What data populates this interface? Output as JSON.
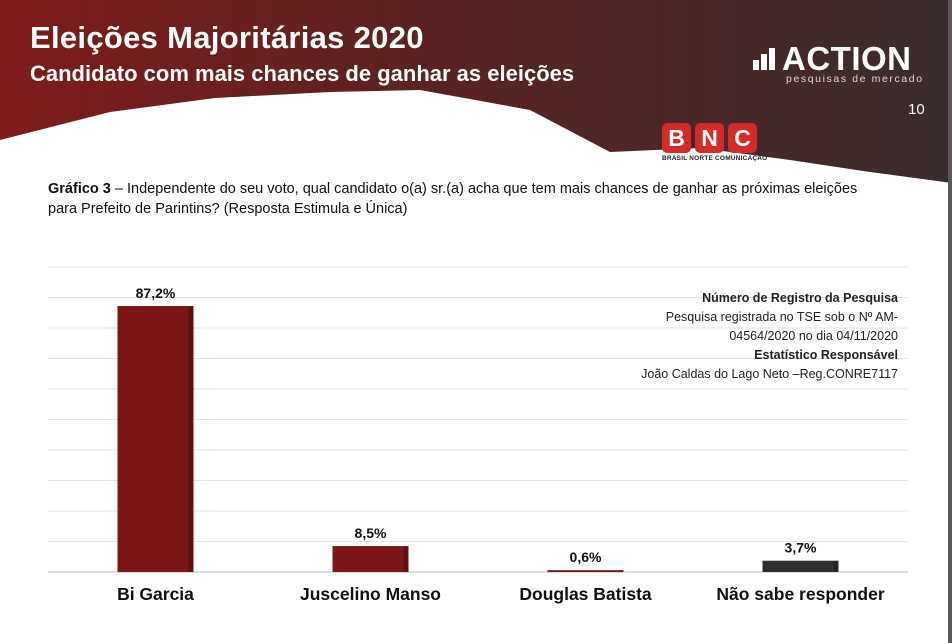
{
  "header": {
    "title": "Eleições Majoritárias 2020",
    "subtitle": "Candidato com mais chances de ganhar as eleições",
    "page_number": "10",
    "colors": {
      "dark": "#3a2a2a",
      "red": "#7a1a1a",
      "white": "#ffffff"
    }
  },
  "logo": {
    "word": "ACTION",
    "tagline": "pesquisas de mercado"
  },
  "bnc_logo": {
    "letters": [
      "B",
      "N",
      "C"
    ],
    "caption": "BRASIL NORTE COMUNICAÇÃO"
  },
  "question": {
    "label": "Gráfico 3",
    "text": " – Independente do seu voto, qual candidato o(a) sr.(a) acha que tem mais chances de ganhar as próximas eleições para Prefeito de Parintins? (Resposta Estimula e Única)"
  },
  "registry": {
    "heading": "Número de Registro da Pesquisa",
    "line1": "Pesquisa registrada no TSE sob o Nº AM-",
    "line2": "04564/2020 no dia 04/11/2020",
    "statistician_heading": "Estatístico Responsável",
    "statistician": "João Caldas do Lago Neto –Reg.CONRE7117"
  },
  "chart_data": {
    "type": "bar",
    "categories": [
      "Bi Garcia",
      "Juscelino Manso",
      "Douglas Batista",
      "Não sabe responder"
    ],
    "values": [
      87.2,
      8.5,
      0.6,
      3.7
    ],
    "data_labels": [
      "87,2%",
      "8,5%",
      "0,6%",
      "3,7%"
    ],
    "colors": [
      "#7a1616",
      "#7a1616",
      "#7a1616",
      "#2f2f2f"
    ],
    "ylim": [
      0,
      100
    ],
    "grid": true,
    "title": "",
    "xlabel": "",
    "ylabel": ""
  }
}
